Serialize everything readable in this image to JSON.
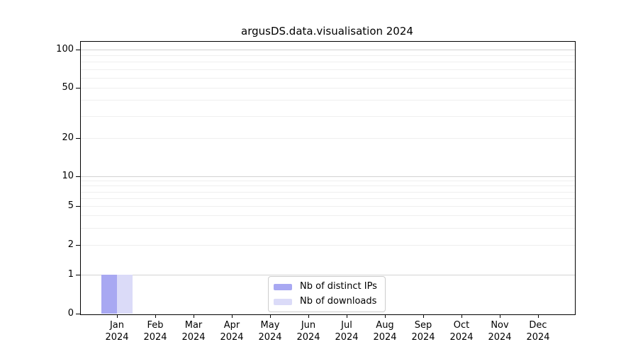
{
  "chart_data": {
    "type": "bar",
    "title": "argusDS.data.visualisation 2024",
    "categories": [
      "Jan",
      "Feb",
      "Mar",
      "Apr",
      "May",
      "Jun",
      "Jul",
      "Aug",
      "Sep",
      "Oct",
      "Nov",
      "Dec"
    ],
    "x_tick_line2": "2024",
    "series": [
      {
        "name": "Nb of distinct IPs",
        "color": "#a8a8f2",
        "values": [
          1,
          0,
          0,
          0,
          0,
          0,
          0,
          0,
          0,
          0,
          0,
          0
        ]
      },
      {
        "name": "Nb of downloads",
        "color": "#dbdbf8",
        "values": [
          1,
          0,
          0,
          0,
          0,
          0,
          0,
          0,
          0,
          0,
          0,
          0
        ]
      }
    ],
    "xlabel": "",
    "ylabel": "",
    "y_scale": "symlog-like (linear 0-1, log above)",
    "ylim": [
      0,
      112
    ],
    "y_ticks": [
      0,
      1,
      2,
      5,
      10,
      20,
      50,
      100
    ],
    "y_major_gridlines": [
      1,
      10,
      100
    ],
    "y_minor_gridlines": [
      2,
      3,
      4,
      5,
      6,
      7,
      8,
      9,
      20,
      30,
      40,
      50,
      60,
      70,
      80,
      90
    ],
    "grid": "horizontal only",
    "legend_position": "inside bottom-center",
    "colors": {
      "major_grid": "#d2d2d2",
      "minor_grid": "#efefef",
      "axis": "#000000",
      "background": "#ffffff"
    }
  }
}
